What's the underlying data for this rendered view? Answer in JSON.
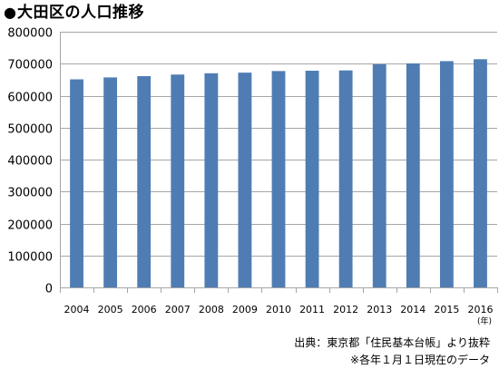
{
  "header": {
    "bullet": "●",
    "title": "大田区の人口推移"
  },
  "chart_data": {
    "type": "bar",
    "categories": [
      "2004",
      "2005",
      "2006",
      "2007",
      "2008",
      "2009",
      "2010",
      "2011",
      "2012",
      "2013",
      "2014",
      "2015",
      "2016"
    ],
    "values": [
      651000,
      657000,
      661000,
      666000,
      670000,
      672000,
      677000,
      678000,
      679000,
      698000,
      701000,
      708000,
      714000
    ],
    "ylim": [
      0,
      800000
    ],
    "yticks": [
      0,
      100000,
      200000,
      300000,
      400000,
      500000,
      600000,
      700000,
      800000
    ],
    "x_unit": "(年)",
    "grid": true,
    "bar_color": "#4f7db3",
    "grid_color": "#a6a6a6"
  },
  "notes": {
    "source": "出典：東京都「住民基本台帳」より抜粋",
    "date": "※各年１月１日現在のデータ"
  }
}
